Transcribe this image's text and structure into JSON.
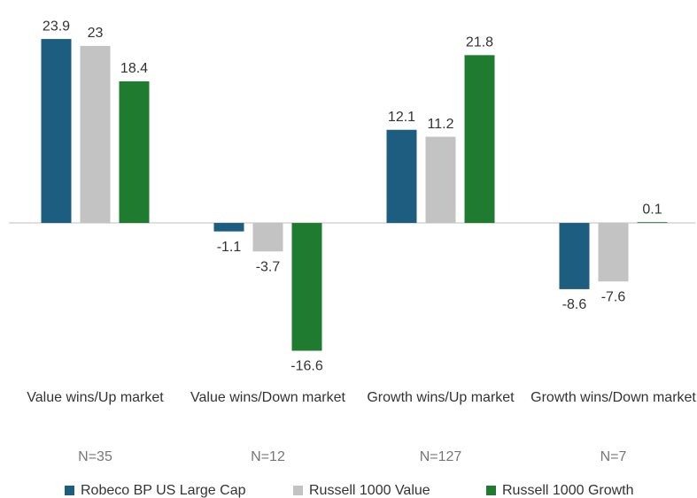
{
  "chart_data": {
    "type": "bar",
    "categories": [
      "Value wins/Up market",
      "Value wins/Down market",
      "Growth wins/Up market",
      "Growth wins/Down market"
    ],
    "n_labels": [
      "N=35",
      "N=12",
      "N=127",
      "N=7"
    ],
    "series": [
      {
        "name": "Robeco BP US Large Cap",
        "color": "#1c5d80",
        "values": [
          23.9,
          -1.1,
          12.1,
          -8.6
        ]
      },
      {
        "name": "Russell 1000 Value",
        "color": "#c3c3c3",
        "values": [
          23,
          -3.7,
          11.2,
          -7.6
        ]
      },
      {
        "name": "Russell 1000 Growth",
        "color": "#1e7b2f",
        "values": [
          18.4,
          -16.6,
          21.8,
          0.1
        ]
      }
    ],
    "ylim": [
      -17,
      25
    ],
    "legend": "bottom"
  }
}
